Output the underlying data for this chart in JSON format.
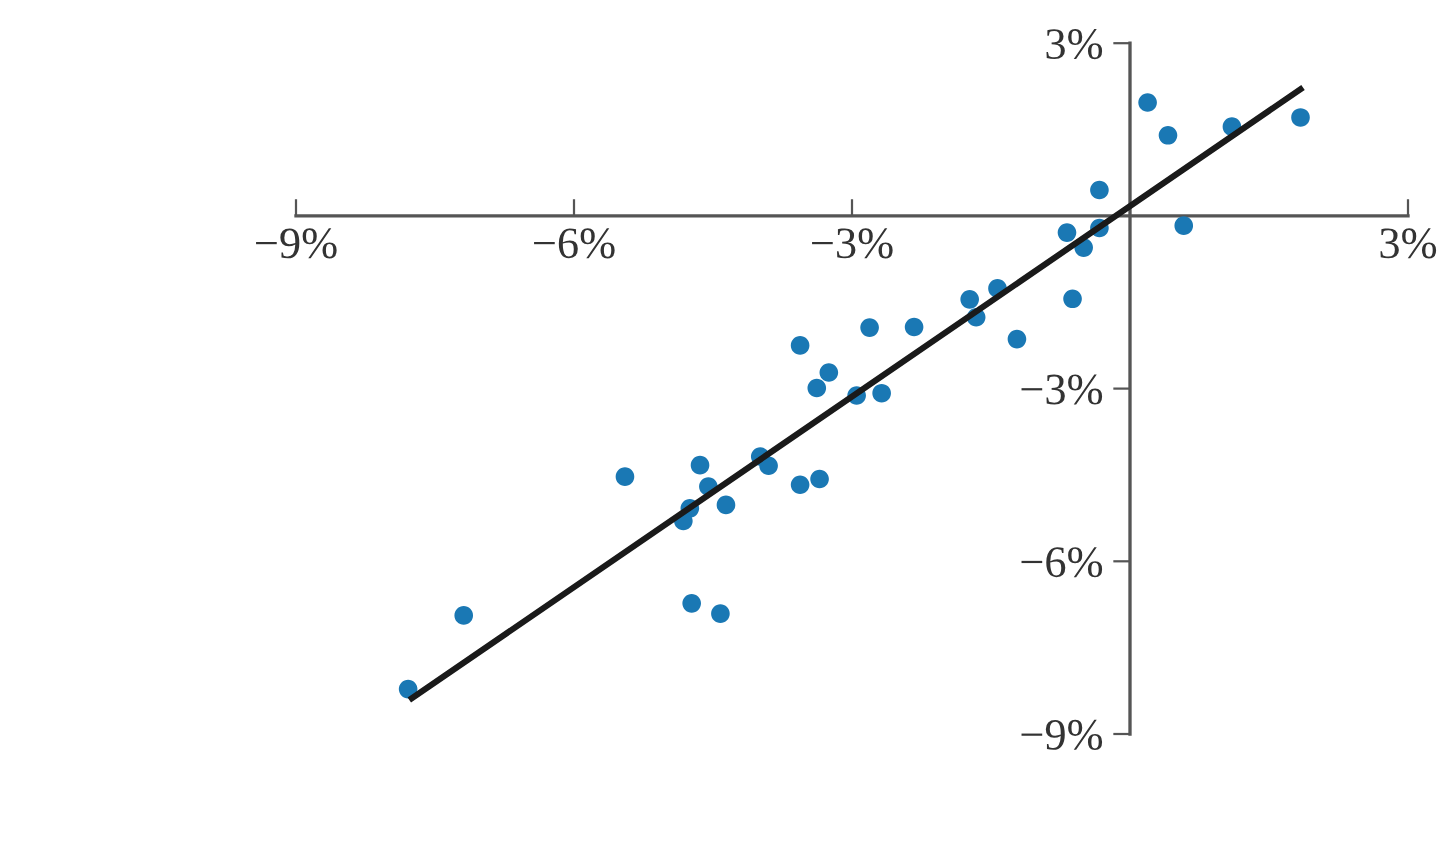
{
  "chart_data": {
    "type": "scatter",
    "x": [
      0.19,
      0.41,
      1.1,
      1.84,
      -0.33,
      0.58,
      -0.33,
      -0.68,
      -0.5,
      -0.62,
      -1.43,
      -1.73,
      -1.66,
      -1.22,
      -2.33,
      -2.81,
      -3.56,
      -3.25,
      -3.38,
      -2.95,
      -2.68,
      -3.99,
      -3.9,
      -3.56,
      -3.35,
      -4.64,
      -4.55,
      -4.36,
      -4.75,
      -4.82,
      -5.45,
      -4.73,
      -4.42,
      -7.19,
      -7.79
    ],
    "series": [
      {
        "color": "#1a78b4",
        "marker": "circle",
        "values": [
          1.97,
          1.4,
          1.55,
          1.71,
          0.45,
          -0.17,
          -0.21,
          -0.29,
          -0.55,
          -1.44,
          -1.26,
          -1.45,
          -1.76,
          -2.14,
          -1.93,
          -1.94,
          -2.25,
          -2.72,
          -2.99,
          -3.12,
          -3.08,
          -4.18,
          -4.34,
          -4.67,
          -4.57,
          -4.33,
          -4.7,
          -5.02,
          -5.08,
          -5.3,
          -4.53,
          -6.73,
          -6.91,
          -6.94,
          -8.22
        ]
      },
      {
        "type": "line",
        "marker": "none",
        "color": "#1a1a1a",
        "x": [
          -7.75,
          1.84
        ],
        "values": [
          -8.38,
          2.2
        ]
      }
    ],
    "xlim": [
      -9,
      3
    ],
    "ylim": [
      -9,
      3
    ],
    "xticks": [
      {
        "value": -9,
        "label": "−9%"
      },
      {
        "value": -6,
        "label": "−6%"
      },
      {
        "value": -3,
        "label": "−3%"
      },
      {
        "value": 3,
        "label": "3%"
      }
    ],
    "yticks": [
      {
        "value": -9,
        "label": "−9%"
      },
      {
        "value": -6,
        "label": "−6%"
      },
      {
        "value": -3,
        "label": "−3%"
      },
      {
        "value": 3,
        "label": "3%"
      }
    ],
    "grid": false
  }
}
